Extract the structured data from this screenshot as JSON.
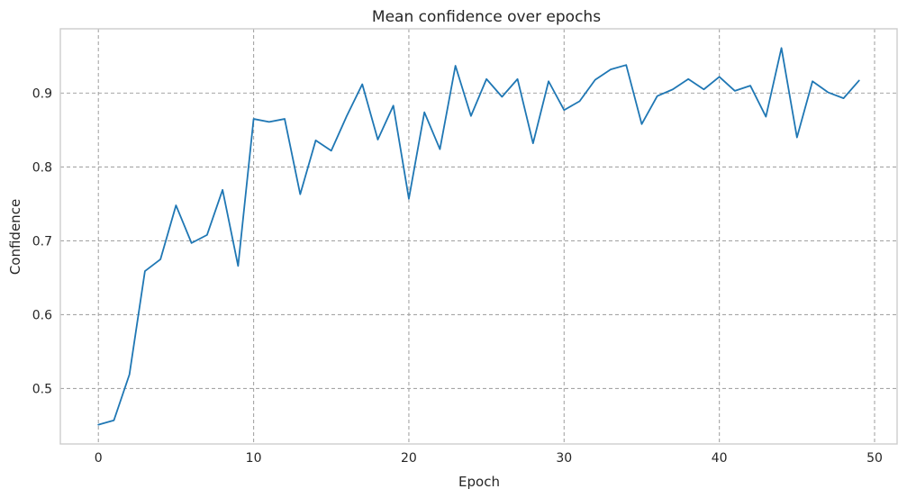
{
  "chart_data": {
    "type": "line",
    "title": "Mean confidence over epochs",
    "xlabel": "Epoch",
    "ylabel": "Confidence",
    "xlim": [
      -2.45,
      51.45
    ],
    "ylim": [
      0.425,
      0.987
    ],
    "xticks": [
      0,
      10,
      20,
      30,
      40,
      50
    ],
    "yticks": [
      0.5,
      0.6,
      0.7,
      0.8,
      0.9
    ],
    "ytick_labels": [
      "0.5",
      "0.6",
      "0.7",
      "0.8",
      "0.9"
    ],
    "grid": true,
    "series": [
      {
        "color": "#1f77b4",
        "x": [
          0,
          1,
          2,
          3,
          4,
          5,
          6,
          7,
          8,
          9,
          10,
          11,
          12,
          13,
          14,
          15,
          16,
          17,
          18,
          19,
          20,
          21,
          22,
          23,
          24,
          25,
          26,
          27,
          28,
          29,
          30,
          31,
          32,
          33,
          34,
          35,
          36,
          37,
          38,
          39,
          40,
          41,
          42,
          43,
          44,
          45,
          46,
          47,
          48,
          49
        ],
        "values": [
          0.451,
          0.457,
          0.519,
          0.659,
          0.675,
          0.748,
          0.697,
          0.708,
          0.769,
          0.666,
          0.865,
          0.861,
          0.865,
          0.763,
          0.836,
          0.822,
          0.869,
          0.912,
          0.837,
          0.883,
          0.757,
          0.874,
          0.824,
          0.937,
          0.869,
          0.919,
          0.895,
          0.919,
          0.832,
          0.916,
          0.877,
          0.889,
          0.918,
          0.932,
          0.938,
          0.858,
          0.896,
          0.905,
          0.919,
          0.905,
          0.922,
          0.903,
          0.91,
          0.868,
          0.961,
          0.84,
          0.916,
          0.901,
          0.893,
          0.917
        ]
      }
    ]
  }
}
